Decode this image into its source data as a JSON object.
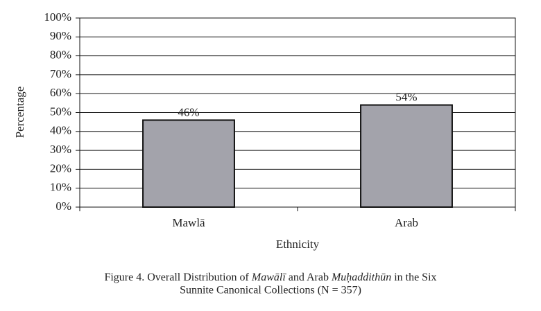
{
  "chart_data": {
    "type": "bar",
    "y_label": "Percentage",
    "x_label": "Ethnicity",
    "caption": [
      "Figure 4. Overall Distribution of",
      "Mawālī",
      "and Arab",
      "Muḥaddithūn",
      "in the Six",
      "Sunnite Canonical Collections (N = 357)"
    ],
    "categories": [
      "Mawlā",
      "Arab"
    ],
    "values": [
      46,
      54
    ],
    "value_labels": [
      "46%",
      "54%"
    ],
    "color": "#a3a3ab",
    "ylim": [
      0,
      100
    ],
    "yticks": [
      {
        "value": 0,
        "label": "0%"
      },
      {
        "value": 10,
        "label": "10%"
      },
      {
        "value": 20,
        "label": "20%"
      },
      {
        "value": 30,
        "label": "30%"
      },
      {
        "value": 40,
        "label": "40%"
      },
      {
        "value": 50,
        "label": "50%"
      },
      {
        "value": 60,
        "label": "60%"
      },
      {
        "value": 70,
        "label": "70%"
      },
      {
        "value": 80,
        "label": "80%"
      },
      {
        "value": 90,
        "label": "90%"
      },
      {
        "value": 100,
        "label": "100%"
      }
    ],
    "grid": true
  }
}
